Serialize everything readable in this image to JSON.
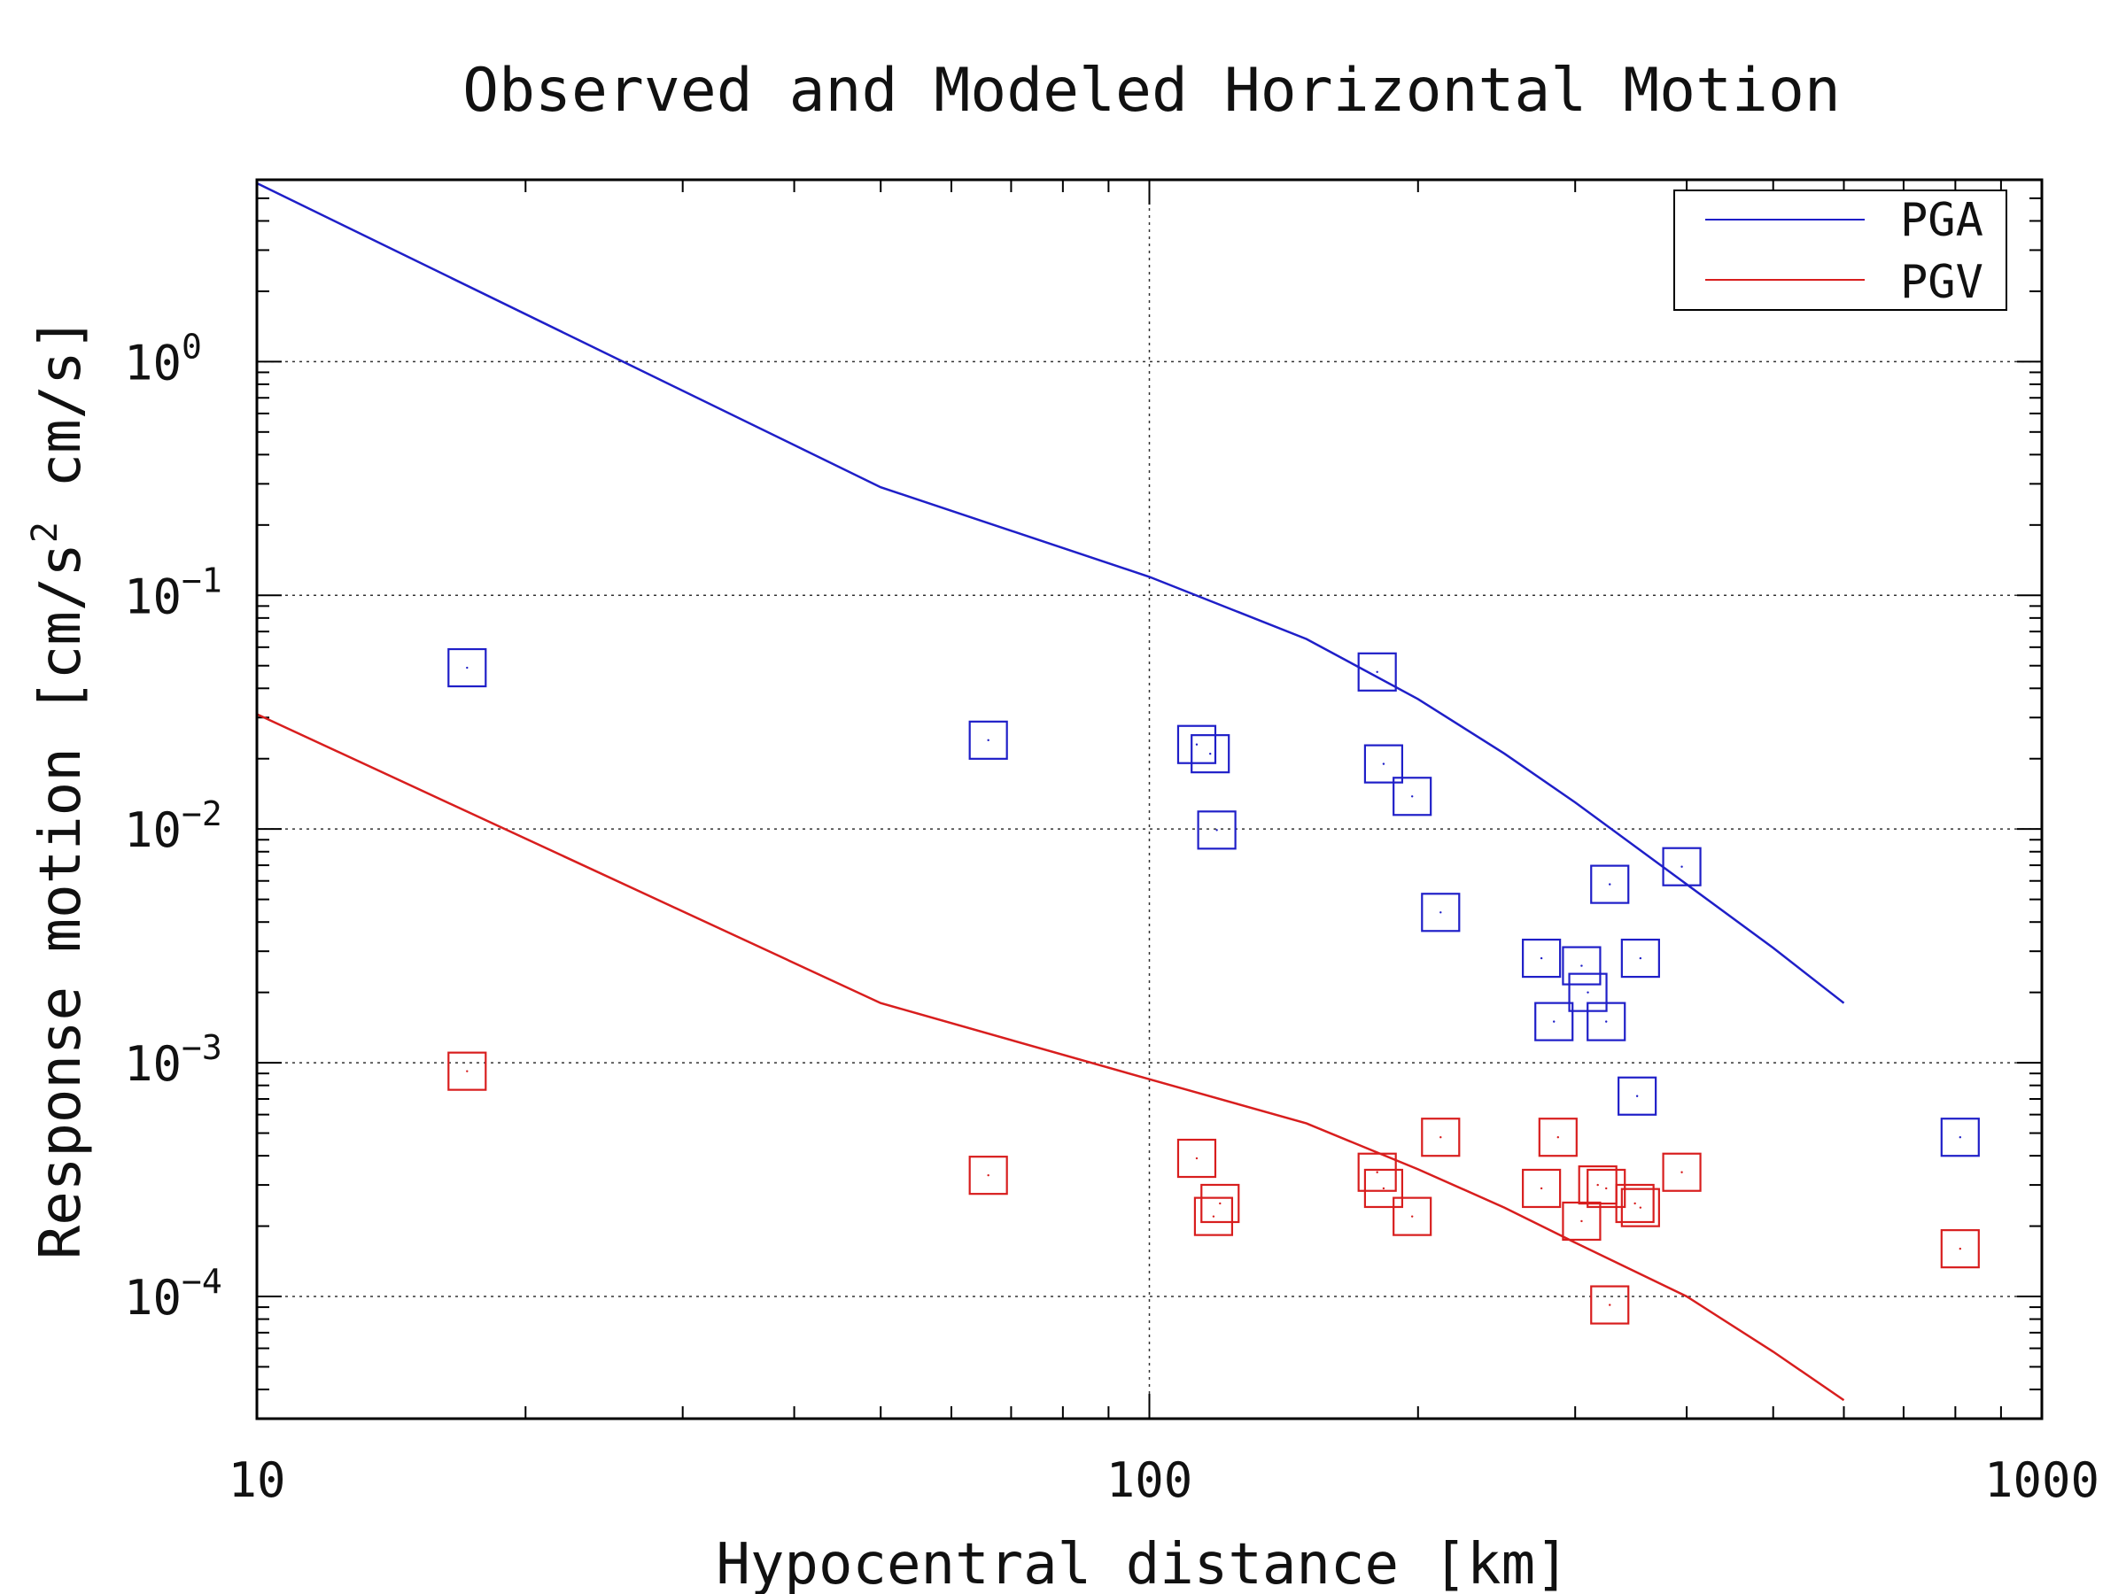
{
  "chart_data": {
    "type": "scatter",
    "title": "Observed and Modeled Horizontal Motion",
    "xlabel": "Hypocentral distance [km]",
    "ylabel": "Response motion  [cm/s",
    "ylabel_sup": "2",
    "ylabel_tail": "  cm/s]",
    "x_scale": "log",
    "y_scale": "log",
    "xlim": [
      10,
      1000
    ],
    "ylim": [
      3e-05,
      6
    ],
    "x_ticks": [
      {
        "value": 10,
        "label": "10"
      },
      {
        "value": 100,
        "label": "100"
      },
      {
        "value": 1000,
        "label": "1000"
      }
    ],
    "y_ticks": [
      {
        "value": 1,
        "base": "10",
        "exp": "0"
      },
      {
        "value": 0.1,
        "base": "10",
        "exp": "−1"
      },
      {
        "value": 0.01,
        "base": "10",
        "exp": "−2"
      },
      {
        "value": 0.001,
        "base": "10",
        "exp": "−3"
      },
      {
        "value": 0.0001,
        "base": "10",
        "exp": "−4"
      }
    ],
    "grid": true,
    "legend_position": "top-right",
    "series": [
      {
        "name": "PGA",
        "color": "#1f1fc8",
        "line": [
          [
            10,
            5.8
          ],
          [
            50,
            0.29
          ],
          [
            100,
            0.12
          ],
          [
            150,
            0.065
          ],
          [
            200,
            0.036
          ],
          [
            250,
            0.021
          ],
          [
            300,
            0.013
          ],
          [
            400,
            0.0058
          ],
          [
            500,
            0.0031
          ],
          [
            600,
            0.0018
          ]
        ],
        "observed": [
          [
            17.2,
            0.049
          ],
          [
            66,
            0.024
          ],
          [
            113,
            0.023
          ],
          [
            117,
            0.021
          ],
          [
            119,
            0.0099
          ],
          [
            180,
            0.047
          ],
          [
            183,
            0.019
          ],
          [
            197,
            0.0138
          ],
          [
            212,
            0.0044
          ],
          [
            275,
            0.0028
          ],
          [
            284,
            0.0015
          ],
          [
            305,
            0.0026
          ],
          [
            310,
            0.002
          ],
          [
            325,
            0.0015
          ],
          [
            328,
            0.0058
          ],
          [
            355,
            0.0028
          ],
          [
            352,
            0.00072
          ],
          [
            395,
            0.0069
          ],
          [
            810,
            0.00048
          ]
        ]
      },
      {
        "name": "PGV",
        "color": "#d81e1e",
        "line": [
          [
            10,
            0.031
          ],
          [
            50,
            0.0018
          ],
          [
            100,
            0.00085
          ],
          [
            150,
            0.00055
          ],
          [
            200,
            0.00035
          ],
          [
            250,
            0.00024
          ],
          [
            300,
            0.00017
          ],
          [
            400,
            0.0001
          ],
          [
            500,
            5.8e-05
          ],
          [
            600,
            3.6e-05
          ]
        ],
        "observed": [
          [
            17.2,
            0.00092
          ],
          [
            66,
            0.00033
          ],
          [
            113,
            0.00039
          ],
          [
            118,
            0.00022
          ],
          [
            120,
            0.00025
          ],
          [
            180,
            0.00034
          ],
          [
            183,
            0.00029
          ],
          [
            197,
            0.00022
          ],
          [
            212,
            0.00048
          ],
          [
            275,
            0.00029
          ],
          [
            287,
            0.00048
          ],
          [
            305,
            0.00021
          ],
          [
            318,
            0.0003
          ],
          [
            325,
            0.00029
          ],
          [
            328,
            9.2e-05
          ],
          [
            350,
            0.00025
          ],
          [
            355,
            0.00024
          ],
          [
            395,
            0.00034
          ],
          [
            810,
            0.00016
          ]
        ]
      }
    ]
  }
}
